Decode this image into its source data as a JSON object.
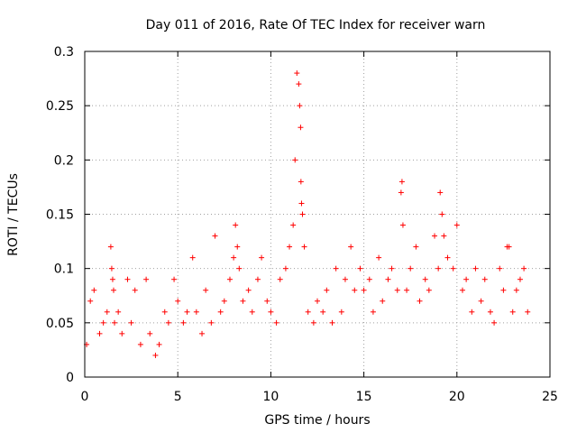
{
  "chart_data": {
    "type": "scatter",
    "title": "Day 011 of 2016, Rate Of TEC Index for receiver warn",
    "xlabel": "GPS time / hours",
    "ylabel": "ROTI / TECUs",
    "xlim": [
      0,
      25
    ],
    "ylim": [
      0,
      0.3
    ],
    "xticks": [
      0,
      5,
      10,
      15,
      20,
      25
    ],
    "yticks": [
      0,
      0.05,
      0.1,
      0.15,
      0.2,
      0.25,
      0.3
    ],
    "xtick_labels": [
      "0",
      "5",
      "10",
      "15",
      "20",
      "25"
    ],
    "ytick_labels": [
      "0",
      "0.05",
      "0.1",
      "0.15",
      "0.2",
      "0.25",
      "0.3"
    ],
    "grid": true,
    "marker": "+",
    "color": "#ff0000",
    "series": [
      {
        "name": "ROTI",
        "x": [
          0.1,
          0.3,
          0.5,
          0.8,
          1.0,
          1.2,
          1.4,
          1.45,
          1.5,
          1.55,
          1.6,
          1.8,
          2.0,
          2.3,
          2.5,
          2.7,
          3.0,
          3.3,
          3.5,
          3.8,
          4.0,
          4.3,
          4.5,
          4.8,
          5.0,
          5.3,
          5.5,
          5.8,
          6.0,
          6.3,
          6.5,
          6.8,
          7.0,
          7.3,
          7.5,
          7.8,
          8.0,
          8.1,
          8.2,
          8.3,
          8.5,
          8.8,
          9.0,
          9.3,
          9.5,
          9.8,
          10.0,
          10.3,
          10.5,
          10.8,
          11.0,
          11.2,
          11.3,
          11.4,
          11.5,
          11.55,
          11.6,
          11.62,
          11.65,
          11.7,
          11.8,
          12.0,
          12.3,
          12.5,
          12.8,
          13.0,
          13.3,
          13.5,
          13.8,
          14.0,
          14.3,
          14.5,
          14.8,
          15.0,
          15.3,
          15.5,
          15.8,
          16.0,
          16.3,
          16.5,
          16.8,
          17.0,
          17.05,
          17.1,
          17.3,
          17.5,
          17.8,
          18.0,
          18.3,
          18.5,
          18.8,
          19.0,
          19.1,
          19.2,
          19.3,
          19.5,
          19.8,
          20.0,
          20.3,
          20.5,
          20.8,
          21.0,
          21.3,
          21.5,
          21.8,
          22.0,
          22.3,
          22.5,
          22.7,
          22.8,
          23.0,
          23.2,
          23.4,
          23.6,
          23.8
        ],
        "y": [
          0.03,
          0.07,
          0.08,
          0.04,
          0.05,
          0.06,
          0.12,
          0.1,
          0.09,
          0.08,
          0.05,
          0.06,
          0.04,
          0.09,
          0.05,
          0.08,
          0.03,
          0.09,
          0.04,
          0.02,
          0.03,
          0.06,
          0.05,
          0.09,
          0.07,
          0.05,
          0.06,
          0.11,
          0.06,
          0.04,
          0.08,
          0.05,
          0.13,
          0.06,
          0.07,
          0.09,
          0.11,
          0.14,
          0.12,
          0.1,
          0.07,
          0.08,
          0.06,
          0.09,
          0.11,
          0.07,
          0.06,
          0.05,
          0.09,
          0.1,
          0.12,
          0.14,
          0.2,
          0.28,
          0.27,
          0.25,
          0.23,
          0.18,
          0.16,
          0.15,
          0.12,
          0.06,
          0.05,
          0.07,
          0.06,
          0.08,
          0.05,
          0.1,
          0.06,
          0.09,
          0.12,
          0.08,
          0.1,
          0.08,
          0.09,
          0.06,
          0.11,
          0.07,
          0.09,
          0.1,
          0.08,
          0.17,
          0.18,
          0.14,
          0.08,
          0.1,
          0.12,
          0.07,
          0.09,
          0.08,
          0.13,
          0.1,
          0.17,
          0.15,
          0.13,
          0.11,
          0.1,
          0.14,
          0.08,
          0.09,
          0.06,
          0.1,
          0.07,
          0.09,
          0.06,
          0.05,
          0.1,
          0.08,
          0.12,
          0.12,
          0.06,
          0.08,
          0.09,
          0.1,
          0.06
        ]
      }
    ]
  }
}
